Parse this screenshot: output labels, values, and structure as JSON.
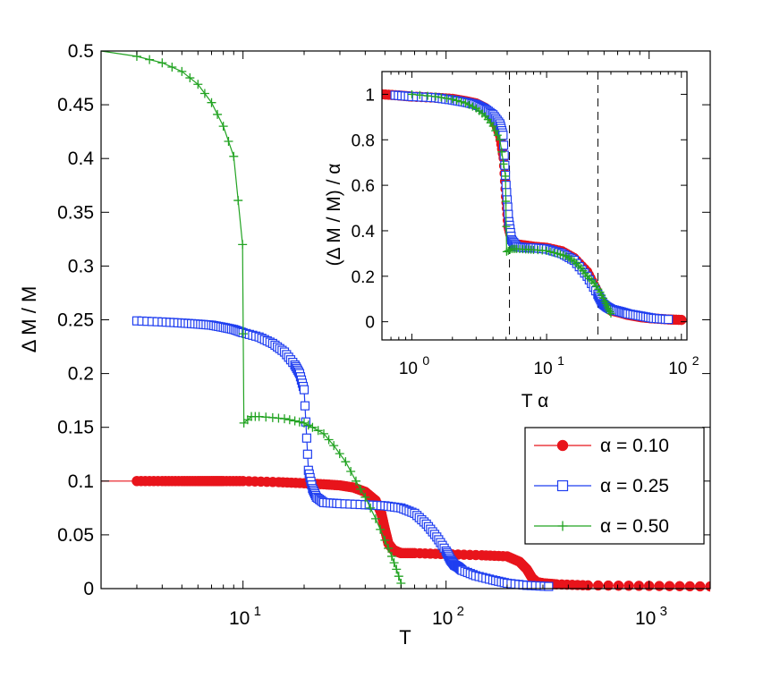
{
  "chart_data": [
    {
      "id": "main",
      "type": "line",
      "xscale": "log",
      "xlim": [
        2,
        2000
      ],
      "ylim": [
        0,
        0.5
      ],
      "xlabel": "T",
      "ylabel": "Δ M / M",
      "xticks": [
        {
          "value": 10,
          "base": "10",
          "exp": "1"
        },
        {
          "value": 100,
          "base": "10",
          "exp": "2"
        },
        {
          "value": 1000,
          "base": "10",
          "exp": "3"
        }
      ],
      "yticks": [
        {
          "value": 0,
          "label": "0"
        },
        {
          "value": 0.05,
          "label": "0.05"
        },
        {
          "value": 0.1,
          "label": "0.1"
        },
        {
          "value": 0.15,
          "label": "0.15"
        },
        {
          "value": 0.2,
          "label": "0.2"
        },
        {
          "value": 0.25,
          "label": "0.25"
        },
        {
          "value": 0.3,
          "label": "0.3"
        },
        {
          "value": 0.35,
          "label": "0.35"
        },
        {
          "value": 0.4,
          "label": "0.4"
        },
        {
          "value": 0.45,
          "label": "0.45"
        },
        {
          "value": 0.5,
          "label": "0.5"
        }
      ],
      "legend_position": "bottom-right",
      "series": [
        {
          "name": "α = 0.10",
          "color": "#e8141b",
          "marker": "filled-circle",
          "x": [
            2,
            3,
            4,
            5,
            6,
            7,
            8,
            10,
            15,
            20,
            25,
            30,
            35,
            40,
            45,
            48,
            50,
            52,
            55,
            58,
            60,
            70,
            100,
            150,
            200,
            230,
            250,
            265,
            280,
            300,
            350,
            500,
            1000,
            2000
          ],
          "y": [
            0.1,
            0.1,
            0.1,
            0.1,
            0.1,
            0.1,
            0.1,
            0.1,
            0.099,
            0.098,
            0.097,
            0.096,
            0.094,
            0.09,
            0.082,
            0.07,
            0.055,
            0.042,
            0.036,
            0.034,
            0.033,
            0.033,
            0.032,
            0.031,
            0.03,
            0.025,
            0.018,
            0.01,
            0.006,
            0.005,
            0.004,
            0.003,
            0.0025,
            0.002
          ]
        },
        {
          "name": "α = 0.25",
          "color": "#1f3ef0",
          "marker": "open-square",
          "x": [
            3,
            4,
            5,
            6,
            7,
            8,
            9,
            10,
            12,
            14,
            16,
            18,
            19,
            20,
            21,
            22,
            23,
            25,
            30,
            40,
            50,
            60,
            70,
            80,
            90,
            100,
            105,
            110,
            115,
            120,
            140,
            170,
            200,
            250,
            320
          ],
          "y": [
            0.249,
            0.248,
            0.247,
            0.246,
            0.245,
            0.243,
            0.241,
            0.238,
            0.234,
            0.228,
            0.22,
            0.208,
            0.2,
            0.185,
            0.11,
            0.093,
            0.085,
            0.08,
            0.079,
            0.078,
            0.077,
            0.075,
            0.07,
            0.06,
            0.048,
            0.035,
            0.027,
            0.022,
            0.02,
            0.017,
            0.012,
            0.008,
            0.005,
            0.003,
            0.002
          ]
        },
        {
          "name": "α = 0.50",
          "color": "#22a322",
          "marker": "plus",
          "x": [
            2,
            3,
            4,
            5,
            6,
            7,
            8,
            9,
            9.95,
            10.1,
            11,
            12,
            14,
            16,
            18,
            20,
            22,
            25,
            28,
            32,
            36,
            40,
            45,
            50,
            54,
            57,
            60
          ],
          "y": [
            0.5,
            0.495,
            0.489,
            0.481,
            0.469,
            0.452,
            0.43,
            0.402,
            0.32,
            0.154,
            0.16,
            0.16,
            0.159,
            0.158,
            0.156,
            0.154,
            0.15,
            0.144,
            0.133,
            0.118,
            0.1,
            0.085,
            0.065,
            0.045,
            0.03,
            0.018,
            0.005
          ]
        }
      ]
    },
    {
      "id": "inset",
      "type": "line",
      "xscale": "log",
      "xlim": [
        0.6,
        110
      ],
      "ylim": [
        -0.08,
        1.1
      ],
      "xlabel": "T α",
      "ylabel": "(Δ M / M) / α",
      "xticks": [
        {
          "value": 1,
          "base": "10",
          "exp": "0"
        },
        {
          "value": 10,
          "base": "10",
          "exp": "1"
        },
        {
          "value": 100,
          "base": "10",
          "exp": "2"
        }
      ],
      "yticks": [
        {
          "value": 0,
          "label": "0"
        },
        {
          "value": 0.2,
          "label": "0.2"
        },
        {
          "value": 0.4,
          "label": "0.4"
        },
        {
          "value": 0.6,
          "label": "0.6"
        },
        {
          "value": 0.8,
          "label": "0.8"
        },
        {
          "value": 1,
          "label": "1"
        }
      ],
      "vlines": [
        5.3,
        24
      ],
      "series": [
        {
          "name": "α = 0.10",
          "color": "#e8141b",
          "marker": "filled-circle",
          "x": [
            0.6,
            0.8,
            1,
            1.5,
            2,
            2.5,
            3,
            3.5,
            4,
            4.5,
            4.8,
            5,
            5.2,
            5.5,
            5.8,
            6,
            7,
            8,
            10,
            13,
            16,
            20,
            23,
            25,
            27,
            30,
            35,
            40,
            50,
            60,
            80,
            100
          ],
          "y": [
            1,
            0.995,
            0.99,
            0.985,
            0.98,
            0.97,
            0.96,
            0.94,
            0.9,
            0.82,
            0.72,
            0.55,
            0.42,
            0.36,
            0.345,
            0.34,
            0.335,
            0.33,
            0.325,
            0.31,
            0.28,
            0.22,
            0.15,
            0.1,
            0.07,
            0.05,
            0.04,
            0.03,
            0.02,
            0.015,
            0.01,
            0.008
          ]
        },
        {
          "name": "α = 0.25",
          "color": "#1f3ef0",
          "marker": "open-square",
          "x": [
            0.75,
            1,
            1.5,
            2,
            2.5,
            3,
            3.5,
            4,
            4.5,
            4.75,
            5,
            5.25,
            5.5,
            6,
            7,
            8,
            10,
            13,
            16,
            20,
            24,
            26,
            28,
            30,
            35,
            40,
            50,
            62,
            80
          ],
          "y": [
            0.996,
            0.99,
            0.985,
            0.975,
            0.965,
            0.955,
            0.935,
            0.91,
            0.87,
            0.82,
            0.6,
            0.44,
            0.36,
            0.33,
            0.325,
            0.325,
            0.32,
            0.3,
            0.27,
            0.2,
            0.12,
            0.08,
            0.065,
            0.055,
            0.045,
            0.035,
            0.025,
            0.015,
            0.01
          ]
        },
        {
          "name": "α = 0.50",
          "color": "#22a322",
          "marker": "plus",
          "x": [
            1,
            1.5,
            2,
            2.5,
            3,
            3.5,
            4,
            4.5,
            4.95,
            5.05,
            5.5,
            6,
            7,
            8,
            10,
            12,
            14,
            16,
            18,
            20,
            22.5,
            25,
            27,
            28.5,
            30
          ],
          "y": [
            1,
            0.99,
            0.978,
            0.962,
            0.938,
            0.904,
            0.86,
            0.8,
            0.64,
            0.308,
            0.32,
            0.32,
            0.318,
            0.316,
            0.312,
            0.3,
            0.288,
            0.266,
            0.236,
            0.2,
            0.17,
            0.13,
            0.09,
            0.06,
            0.036
          ]
        }
      ]
    }
  ]
}
